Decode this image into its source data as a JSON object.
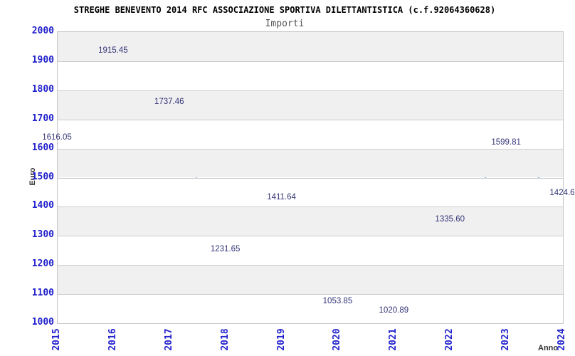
{
  "chart_data": {
    "type": "line",
    "title": "STREGHE BENEVENTO 2014 RFC ASSOCIAZIONE SPORTIVA DILETTANTISTICA (c.f.92064360628)",
    "subtitle": "Importi",
    "xlabel": "Anno",
    "ylabel": "Euro",
    "categories": [
      "2015",
      "2016",
      "2017",
      "2018",
      "2019",
      "2020",
      "2021",
      "2022",
      "2023",
      "2024"
    ],
    "values": [
      1616.05,
      1915.45,
      1737.46,
      1231.65,
      1411.64,
      1053.85,
      1020.89,
      1335.6,
      1599.81,
      1424.6
    ],
    "value_labels": [
      "1616.05",
      "1915.45",
      "1737.46",
      "1231.65",
      "1411.64",
      "1053.85",
      "1020.89",
      "1335.60",
      "1599.81",
      "1424.6"
    ],
    "ylim": [
      1000,
      2000
    ],
    "ytick_step": 100,
    "grid": true,
    "banded_background": true,
    "legend": "none",
    "colors": {
      "line": "#6f9fd6",
      "tick_label": "#2222cc",
      "value_label": "#333377",
      "band": "#f0f0f0",
      "band_alt": "#ffffff",
      "gridline": "#cccccc",
      "plot_border": "#c6c6c6",
      "title": "#000000",
      "subtitle": "#555555",
      "axis_title": "#333333"
    }
  }
}
